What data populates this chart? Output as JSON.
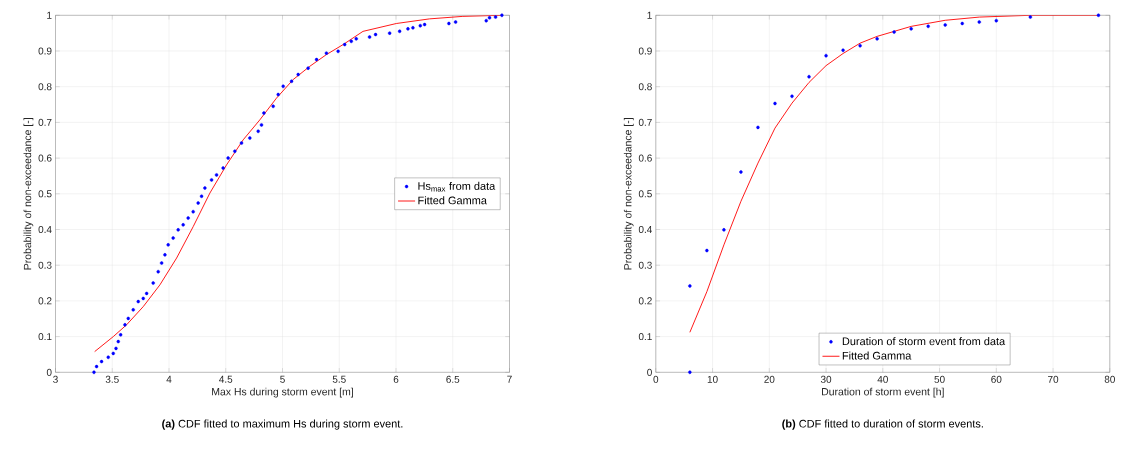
{
  "chart_data": [
    {
      "type": "scatter",
      "xlabel": "Max Hs during storm event [m]",
      "ylabel": "Probability of non-exceedance [-]",
      "xlim": [
        3,
        7
      ],
      "ylim": [
        0,
        1
      ],
      "xticks": [
        3,
        3.5,
        4,
        4.5,
        5,
        5.5,
        6,
        6.5,
        7
      ],
      "yticks": [
        0,
        0.1,
        0.2,
        0.3,
        0.4,
        0.5,
        0.6,
        0.7,
        0.8,
        0.9,
        1
      ],
      "grid": true,
      "legend": "right",
      "annotations": [
        "**(a)** CDF fitted to maximum Hs during storm event."
      ],
      "series": [
        {
          "name": "Hs$_{max}$ from data",
          "color": "#0000ff",
          "x": [
            3.339,
            3.362,
            3.406,
            3.465,
            3.509,
            3.533,
            3.553,
            3.574,
            3.612,
            3.641,
            3.685,
            3.729,
            3.773,
            3.803,
            3.861,
            3.905,
            3.935,
            3.964,
            3.993,
            4.037,
            4.081,
            4.125,
            4.169,
            4.213,
            4.257,
            4.287,
            4.316,
            4.375,
            4.419,
            4.477,
            4.521,
            4.58,
            4.639,
            4.712,
            4.786,
            4.815,
            4.836,
            4.918,
            4.962,
            5.006,
            5.08,
            5.138,
            5.226,
            5.3,
            5.387,
            5.49,
            5.548,
            5.606,
            5.65,
            5.767,
            5.82,
            5.944,
            6.032,
            6.105,
            6.149,
            6.214,
            6.252,
            6.466,
            6.525,
            6.795,
            6.824,
            6.877,
            6.933
          ],
          "values": [
            0,
            0.016,
            0.03,
            0.042,
            0.053,
            0.067,
            0.086,
            0.105,
            0.133,
            0.151,
            0.175,
            0.198,
            0.207,
            0.221,
            0.25,
            0.282,
            0.306,
            0.329,
            0.357,
            0.376,
            0.399,
            0.413,
            0.432,
            0.45,
            0.474,
            0.493,
            0.516,
            0.539,
            0.553,
            0.572,
            0.6,
            0.619,
            0.642,
            0.656,
            0.675,
            0.693,
            0.726,
            0.745,
            0.778,
            0.801,
            0.815,
            0.834,
            0.852,
            0.876,
            0.894,
            0.899,
            0.918,
            0.927,
            0.934,
            0.939,
            0.946,
            0.95,
            0.955,
            0.962,
            0.965,
            0.971,
            0.974,
            0.977,
            0.981,
            0.985,
            0.993,
            0.995,
            1.0
          ]
        },
        {
          "name": "Fitted Gamma",
          "type": "line",
          "color": "#ff0000",
          "x": [
            3.345,
            3.509,
            3.626,
            3.773,
            3.92,
            4.067,
            4.213,
            4.36,
            4.507,
            4.653,
            4.8,
            4.947,
            5.094,
            5.24,
            5.387,
            5.534,
            5.709,
            6.003,
            6.296,
            6.589,
            6.933
          ],
          "values": [
            0.058,
            0.1,
            0.133,
            0.184,
            0.245,
            0.32,
            0.408,
            0.502,
            0.581,
            0.651,
            0.707,
            0.768,
            0.82,
            0.857,
            0.89,
            0.918,
            0.955,
            0.977,
            0.99,
            0.997,
            1.0
          ]
        }
      ]
    },
    {
      "type": "scatter",
      "xlabel": "Duration of storm event [h]",
      "ylabel": "Probability of non-exceedance [-]",
      "xlim": [
        0,
        80
      ],
      "ylim": [
        0,
        1
      ],
      "xticks": [
        0,
        10,
        20,
        30,
        40,
        50,
        60,
        70,
        80
      ],
      "yticks": [
        0,
        0.1,
        0.2,
        0.3,
        0.4,
        0.5,
        0.6,
        0.7,
        0.8,
        0.9,
        1
      ],
      "grid": true,
      "legend": "bottom",
      "annotations": [
        "**(b)** CDF fitted to duration of storm events."
      ],
      "series": [
        {
          "name": "Duration of storm event from data",
          "color": "#0000ff",
          "x": [
            6,
            6,
            9,
            12,
            15,
            18,
            21,
            24,
            27,
            30,
            33,
            36,
            39,
            42,
            45,
            48,
            51,
            54,
            57,
            60,
            66,
            78
          ],
          "values": [
            0,
            0.242,
            0.341,
            0.399,
            0.561,
            0.686,
            0.753,
            0.773,
            0.828,
            0.887,
            0.902,
            0.915,
            0.934,
            0.953,
            0.962,
            0.969,
            0.973,
            0.977,
            0.981,
            0.985,
            0.995,
            1.0
          ]
        },
        {
          "name": "Fitted Gamma",
          "type": "line",
          "color": "#ff0000",
          "x": [
            6,
            9,
            12,
            15,
            18,
            21,
            24,
            27,
            30,
            33,
            36,
            39,
            42,
            45,
            51,
            57,
            66,
            78
          ],
          "values": [
            0.112,
            0.226,
            0.357,
            0.479,
            0.586,
            0.684,
            0.754,
            0.812,
            0.859,
            0.893,
            0.922,
            0.941,
            0.955,
            0.969,
            0.986,
            0.995,
            1.0,
            1.0
          ]
        }
      ]
    }
  ]
}
